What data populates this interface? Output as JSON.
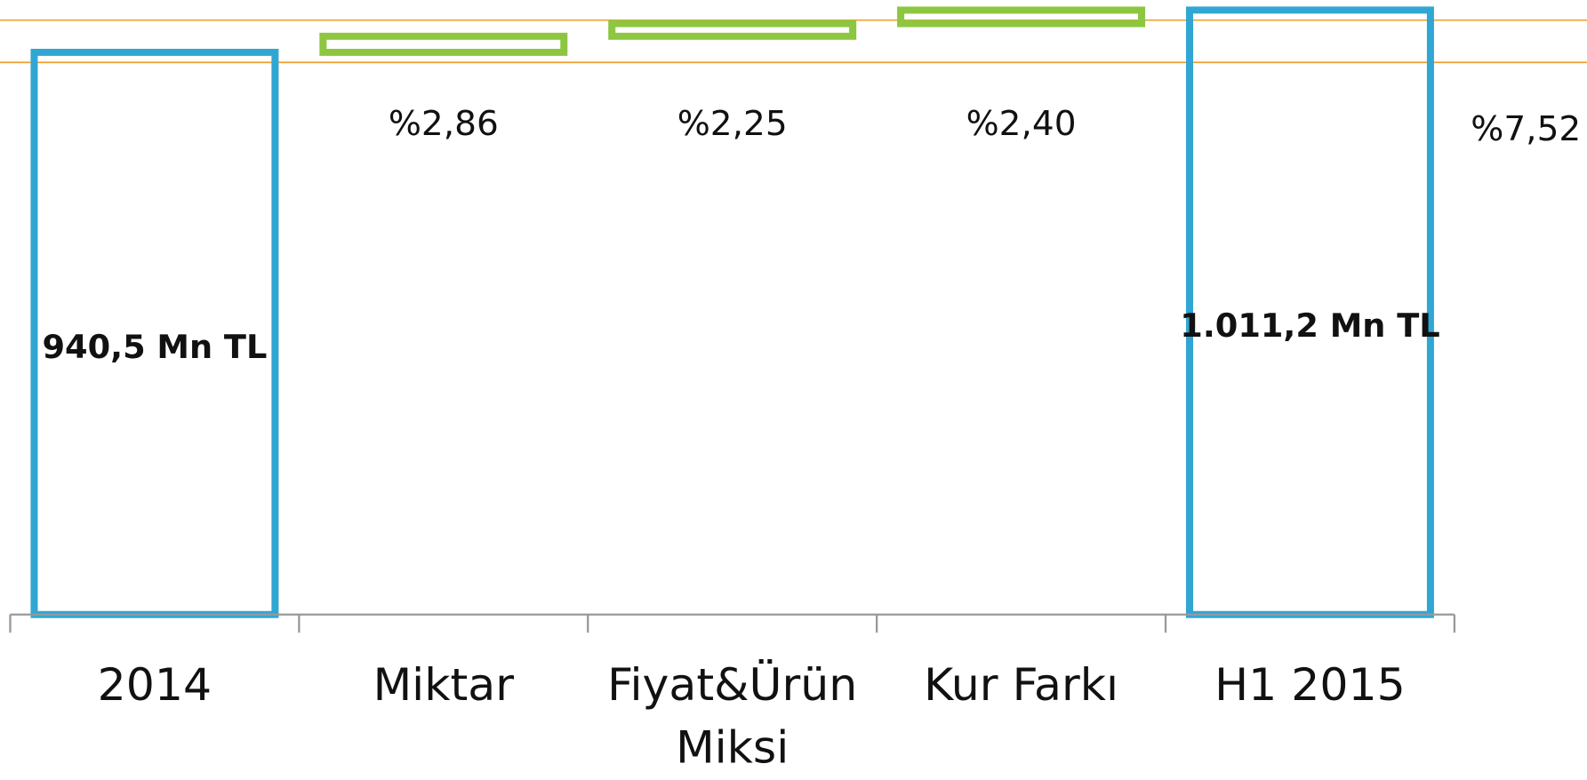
{
  "chart_data": {
    "type": "waterfall",
    "categories": [
      "2014",
      "Miktar",
      "Fiyat&Ürün Miksi",
      "Kur Farkı",
      "H1 2015"
    ],
    "measures": [
      "absolute",
      "relative",
      "relative",
      "relative",
      "total"
    ],
    "values": [
      940.5,
      2.86,
      2.25,
      2.4,
      1011.2
    ],
    "value_labels": [
      "940,5 Mn TL",
      "%2,86",
      "%2,25",
      "%2,40",
      "1.011,2 Mn TL"
    ],
    "total_change": {
      "value": 7.52,
      "label": "%7,52"
    },
    "colors": {
      "total": "#31a6d3",
      "change": "#8dc63f",
      "line": "#f0a030",
      "axis": "#999999"
    }
  }
}
